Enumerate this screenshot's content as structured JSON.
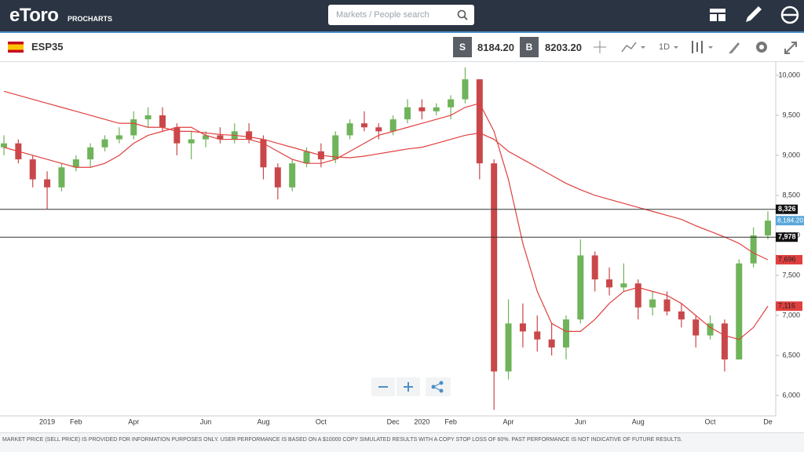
{
  "header": {
    "logo": "eToro",
    "subtitle": "PROCHARTS",
    "search_placeholder": "Markets / People search"
  },
  "toolbar": {
    "symbol": "ESP35",
    "sell_label": "S",
    "sell_price": "8184.20",
    "buy_label": "B",
    "buy_price": "8203.20",
    "timeframe": "1D"
  },
  "footer": {
    "disclaimer": "MARKET PRICE (SELL PRICE) IS PROVIDED FOR INFORMATION PURPOSES ONLY. USER PERFORMANCE IS BASED ON A $10000 COPY SIMULATED RESULTS WITH A COPY STOP LOSS OF 60%. PAST PERFORMANCE IS NOT INDICATIVE OF FUTURE RESULTS."
  },
  "chart_data": {
    "type": "candlestick",
    "categories": [
      null,
      null,
      null,
      "2019",
      null,
      "Feb",
      null,
      null,
      null,
      "Apr",
      null,
      null,
      null,
      null,
      "Jun",
      null,
      null,
      null,
      "Aug",
      null,
      null,
      null,
      "Oct",
      null,
      null,
      null,
      null,
      "Dec",
      null,
      "2020",
      null,
      "Feb",
      null,
      null,
      null,
      "Apr",
      null,
      null,
      null,
      null,
      "Jun",
      null,
      null,
      null,
      "Aug",
      null,
      null,
      null,
      null,
      "Oct",
      null,
      null,
      null,
      "De"
    ],
    "open": [
      9100,
      9150,
      8950,
      8700,
      8600,
      8850,
      8950,
      9100,
      9200,
      9250,
      9450,
      9500,
      9350,
      9150,
      9200,
      9250,
      9200,
      9300,
      9200,
      8850,
      8600,
      8900,
      9050,
      8950,
      9250,
      9400,
      9350,
      9300,
      9450,
      9600,
      9550,
      9600,
      9700,
      9950,
      8900,
      6300,
      6900,
      6800,
      6700,
      6600,
      6950,
      7750,
      7450,
      7350,
      7400,
      7100,
      7200,
      7050,
      6950,
      6750,
      6900,
      6450,
      7650,
      8000
    ],
    "high": [
      9250,
      9200,
      9000,
      8800,
      8900,
      9000,
      9150,
      9250,
      9350,
      9550,
      9600,
      9600,
      9400,
      9300,
      9300,
      9350,
      9400,
      9400,
      9250,
      8900,
      8950,
      9100,
      9150,
      9300,
      9450,
      9550,
      9400,
      9500,
      9700,
      9700,
      9650,
      9750,
      10100,
      9950,
      8950,
      7200,
      7150,
      7000,
      6900,
      7000,
      7950,
      7800,
      7600,
      7650,
      7450,
      7300,
      7300,
      7150,
      7000,
      7000,
      6950,
      7700,
      8100,
      8300
    ],
    "low": [
      9000,
      8900,
      8600,
      8330,
      8550,
      8800,
      8850,
      9050,
      9150,
      9200,
      9350,
      9300,
      9000,
      8950,
      9100,
      9150,
      9150,
      9150,
      8700,
      8450,
      8550,
      8850,
      8850,
      8900,
      9200,
      9300,
      9200,
      9250,
      9400,
      9450,
      9500,
      9450,
      9650,
      8700,
      5820,
      6200,
      6600,
      6550,
      6500,
      6450,
      6900,
      7300,
      7250,
      7300,
      6950,
      7000,
      7000,
      6850,
      6600,
      6700,
      6300,
      6450,
      7600,
      7950
    ],
    "close": [
      9150,
      8950,
      8700,
      8600,
      8850,
      8950,
      9100,
      9200,
      9250,
      9450,
      9500,
      9350,
      9150,
      9200,
      9250,
      9200,
      9300,
      9200,
      8850,
      8600,
      8900,
      9050,
      8950,
      9250,
      9400,
      9350,
      9300,
      9450,
      9600,
      9550,
      9600,
      9700,
      9950,
      8900,
      6300,
      6900,
      6800,
      6700,
      6600,
      6950,
      7750,
      7450,
      7350,
      7400,
      7100,
      7200,
      7050,
      6950,
      6750,
      6900,
      6450,
      7650,
      8000,
      8184.2
    ],
    "up_color": "#6fb35a",
    "down_color": "#c9474a",
    "last_price_label": "8,184.20",
    "last_price_color": "#5aa7d8",
    "series": [
      {
        "color": "#e0403f",
        "end_label": "7,116",
        "values": [
          9100,
          9050,
          9000,
          8950,
          8900,
          8850,
          8850,
          8900,
          9000,
          9150,
          9250,
          9300,
          9350,
          9350,
          9250,
          9200,
          9200,
          9200,
          9150,
          9050,
          8950,
          8900,
          8900,
          8950,
          9050,
          9150,
          9250,
          9300,
          9350,
          9400,
          9450,
          9500,
          9600,
          9650,
          9300,
          8700,
          7900,
          7300,
          6900,
          6800,
          6800,
          6950,
          7150,
          7300,
          7350,
          7300,
          7250,
          7150,
          7000,
          6850,
          6750,
          6700,
          6850,
          7116
        ]
      },
      {
        "color": "#e0403f",
        "end_label": "7,696",
        "values": [
          9800,
          9750,
          9700,
          9650,
          9600,
          9550,
          9500,
          9450,
          9400,
          9400,
          9350,
          9350,
          9300,
          9300,
          9280,
          9260,
          9250,
          9230,
          9200,
          9150,
          9100,
          9050,
          9000,
          8980,
          8970,
          8990,
          9020,
          9050,
          9080,
          9100,
          9150,
          9200,
          9250,
          9280,
          9200,
          9050,
          8950,
          8850,
          8750,
          8650,
          8570,
          8500,
          8450,
          8400,
          8350,
          8300,
          8250,
          8200,
          8120,
          8050,
          7980,
          7900,
          7780,
          7696
        ]
      }
    ],
    "hlines": [
      {
        "value": 8326,
        "label": "8,326"
      },
      {
        "value": 7978,
        "label": "7,978"
      }
    ],
    "ylim": [
      5745,
      10176
    ],
    "yticks": [
      {
        "value": 6000,
        "label": "6,000"
      },
      {
        "value": 6500,
        "label": "6,500"
      },
      {
        "value": 7000,
        "label": "7,000"
      },
      {
        "value": 7500,
        "label": "7,500"
      },
      {
        "value": 8000,
        "label": "8,000"
      },
      {
        "value": 8500,
        "label": "8,500"
      },
      {
        "value": 9000,
        "label": "9,000"
      },
      {
        "value": 9500,
        "label": "9,500"
      },
      {
        "value": 10000,
        "label": "10,000"
      }
    ]
  }
}
